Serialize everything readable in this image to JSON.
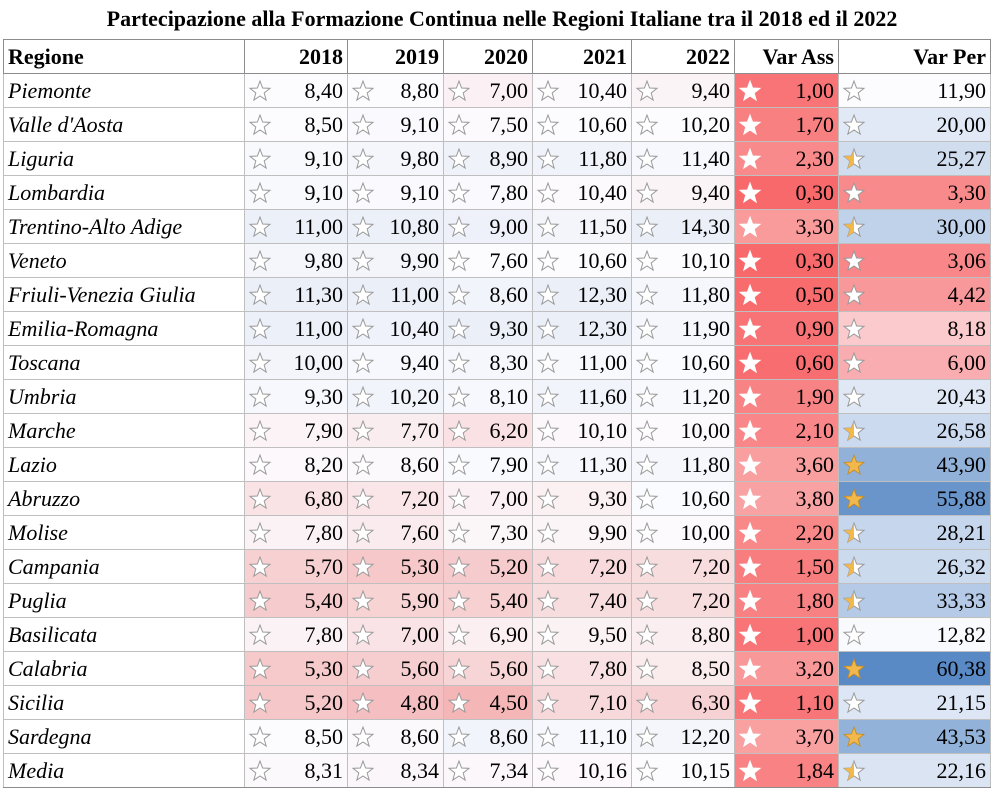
{
  "title": "Partecipazione alla Formazione Continua nelle Regioni Italiane tra il 2018 ed il 2022",
  "headers": [
    "Regione",
    "2018",
    "2019",
    "2020",
    "2021",
    "2022",
    "Var Ass",
    "Var Per"
  ],
  "rows": [
    {
      "region": "Piemonte",
      "v": [
        "8,40",
        "8,80",
        "7,00",
        "10,40",
        "9,40",
        "1,00",
        "11,90"
      ]
    },
    {
      "region": "Valle d'Aosta",
      "v": [
        "8,50",
        "9,10",
        "7,50",
        "10,60",
        "10,20",
        "1,70",
        "20,00"
      ]
    },
    {
      "region": "Liguria",
      "v": [
        "9,10",
        "9,80",
        "8,90",
        "11,80",
        "11,40",
        "2,30",
        "25,27"
      ]
    },
    {
      "region": "Lombardia",
      "v": [
        "9,10",
        "9,10",
        "7,80",
        "10,40",
        "9,40",
        "0,30",
        "3,30"
      ]
    },
    {
      "region": "Trentino-Alto Adige",
      "v": [
        "11,00",
        "10,80",
        "9,00",
        "11,50",
        "14,30",
        "3,30",
        "30,00"
      ]
    },
    {
      "region": "Veneto",
      "v": [
        "9,80",
        "9,90",
        "7,60",
        "10,60",
        "10,10",
        "0,30",
        "3,06"
      ]
    },
    {
      "region": "Friuli-Venezia Giulia",
      "v": [
        "11,30",
        "11,00",
        "8,60",
        "12,30",
        "11,80",
        "0,50",
        "4,42"
      ]
    },
    {
      "region": "Emilia-Romagna",
      "v": [
        "11,00",
        "10,40",
        "9,30",
        "12,30",
        "11,90",
        "0,90",
        "8,18"
      ]
    },
    {
      "region": "Toscana",
      "v": [
        "10,00",
        "9,40",
        "8,30",
        "11,00",
        "10,60",
        "0,60",
        "6,00"
      ]
    },
    {
      "region": "Umbria",
      "v": [
        "9,30",
        "10,20",
        "8,10",
        "11,60",
        "11,20",
        "1,90",
        "20,43"
      ]
    },
    {
      "region": "Marche",
      "v": [
        "7,90",
        "7,70",
        "6,20",
        "10,10",
        "10,00",
        "2,10",
        "26,58"
      ]
    },
    {
      "region": "Lazio",
      "v": [
        "8,20",
        "8,60",
        "7,90",
        "11,30",
        "11,80",
        "3,60",
        "43,90"
      ]
    },
    {
      "region": "Abruzzo",
      "v": [
        "6,80",
        "7,20",
        "7,00",
        "9,30",
        "10,60",
        "3,80",
        "55,88"
      ]
    },
    {
      "region": "Molise",
      "v": [
        "7,80",
        "7,60",
        "7,30",
        "9,90",
        "10,00",
        "2,20",
        "28,21"
      ]
    },
    {
      "region": "Campania",
      "v": [
        "5,70",
        "5,30",
        "5,20",
        "7,20",
        "7,20",
        "1,50",
        "26,32"
      ]
    },
    {
      "region": "Puglia",
      "v": [
        "5,40",
        "5,90",
        "5,40",
        "7,40",
        "7,20",
        "1,80",
        "33,33"
      ]
    },
    {
      "region": "Basilicata",
      "v": [
        "7,80",
        "7,00",
        "6,90",
        "9,50",
        "8,80",
        "1,00",
        "12,82"
      ]
    },
    {
      "region": "Calabria",
      "v": [
        "5,30",
        "5,60",
        "5,60",
        "7,80",
        "8,50",
        "3,20",
        "60,38"
      ]
    },
    {
      "region": "Sicilia",
      "v": [
        "5,20",
        "4,80",
        "4,50",
        "7,10",
        "6,30",
        "1,10",
        "21,15"
      ]
    },
    {
      "region": "Sardegna",
      "v": [
        "8,50",
        "8,60",
        "8,60",
        "11,10",
        "12,20",
        "3,70",
        "43,53"
      ]
    },
    {
      "region": "Media",
      "v": [
        "8,31",
        "8,34",
        "7,34",
        "10,16",
        "10,15",
        "1,84",
        "22,16"
      ]
    }
  ],
  "colors": {
    "red_max": "#f8696b",
    "mid": "#fcfcff",
    "blue_max": "#5a8ac6",
    "star_gold": "#f2b84b",
    "star_outline": "#9a9a9a"
  }
}
